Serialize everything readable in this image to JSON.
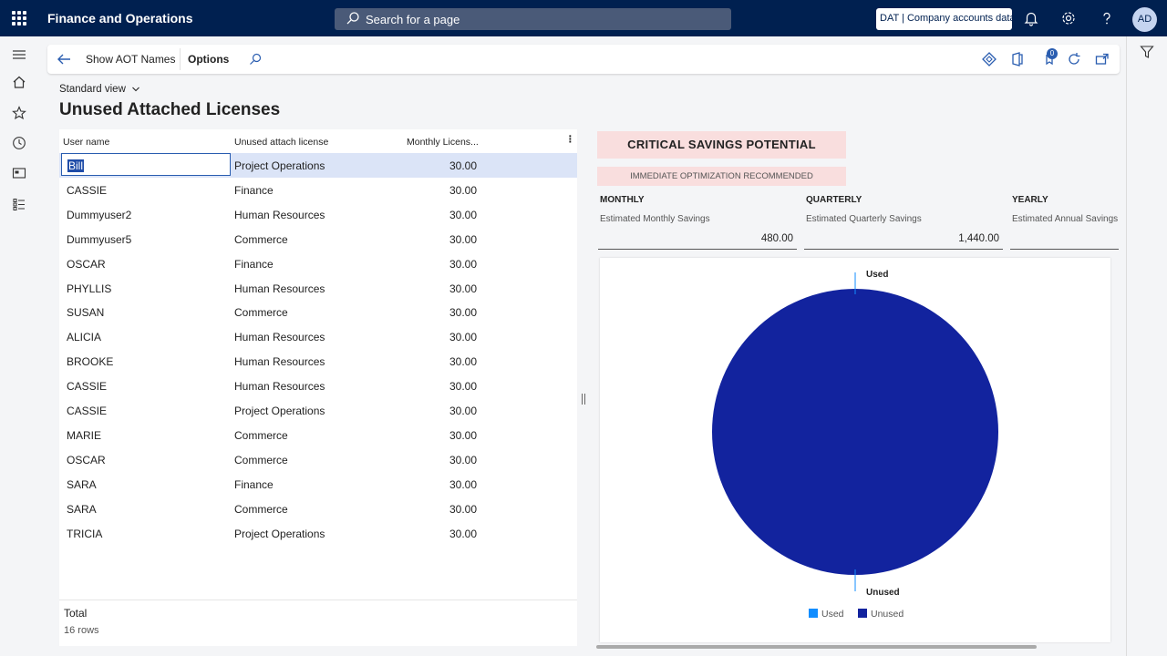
{
  "app": {
    "title": "Finance and Operations",
    "search_placeholder": "Search for a page",
    "company": "DAT | Company accounts data",
    "user_initials": "AD"
  },
  "actionbar": {
    "show_aot": "Show AOT Names",
    "options": "Options",
    "badge_count": "0"
  },
  "view": {
    "label": "Standard view"
  },
  "page": {
    "title": "Unused Attached Licenses"
  },
  "grid": {
    "columns": [
      "User name",
      "Unused attach license",
      "Monthly Licens..."
    ],
    "rows": [
      {
        "user": "Bill",
        "license": "Project Operations",
        "cost": "30.00"
      },
      {
        "user": "CASSIE",
        "license": "Finance",
        "cost": "30.00"
      },
      {
        "user": "Dummyuser2",
        "license": "Human Resources",
        "cost": "30.00"
      },
      {
        "user": "Dummyuser5",
        "license": "Commerce",
        "cost": "30.00"
      },
      {
        "user": "OSCAR",
        "license": "Finance",
        "cost": "30.00"
      },
      {
        "user": "PHYLLIS",
        "license": "Human Resources",
        "cost": "30.00"
      },
      {
        "user": "SUSAN",
        "license": "Commerce",
        "cost": "30.00"
      },
      {
        "user": "ALICIA",
        "license": "Human Resources",
        "cost": "30.00"
      },
      {
        "user": "BROOKE",
        "license": "Human Resources",
        "cost": "30.00"
      },
      {
        "user": "CASSIE",
        "license": "Human Resources",
        "cost": "30.00"
      },
      {
        "user": "CASSIE",
        "license": "Project Operations",
        "cost": "30.00"
      },
      {
        "user": "MARIE",
        "license": "Commerce",
        "cost": "30.00"
      },
      {
        "user": "OSCAR",
        "license": "Commerce",
        "cost": "30.00"
      },
      {
        "user": "SARA",
        "license": "Finance",
        "cost": "30.00"
      },
      {
        "user": "SARA",
        "license": "Commerce",
        "cost": "30.00"
      },
      {
        "user": "TRICIA",
        "license": "Project Operations",
        "cost": "30.00"
      }
    ],
    "total_label": "Total",
    "rows_label": "16 rows"
  },
  "savings": {
    "critical": "CRITICAL SAVINGS POTENTIAL",
    "recommend": "IMMEDIATE OPTIMIZATION RECOMMENDED",
    "monthly": {
      "heading": "MONTHLY",
      "label": "Estimated Monthly Savings",
      "value": "480.00"
    },
    "quarterly": {
      "heading": "QUARTERLY",
      "label": "Estimated Quarterly Savings",
      "value": "1,440.00"
    },
    "yearly": {
      "heading": "YEARLY",
      "label": "Estimated Annual Savings",
      "value": ""
    }
  },
  "colors": {
    "nav": "#002050",
    "used": "#118dff",
    "unused": "#12239e",
    "selected_row": "#dbe4f7",
    "critical_bg": "#f9dede"
  },
  "chart_data": {
    "type": "pie",
    "labels": [
      "Used",
      "Unused"
    ],
    "values": [
      0,
      100
    ],
    "legend": [
      "Used",
      "Unused"
    ],
    "legend_position": "bottom-center"
  }
}
